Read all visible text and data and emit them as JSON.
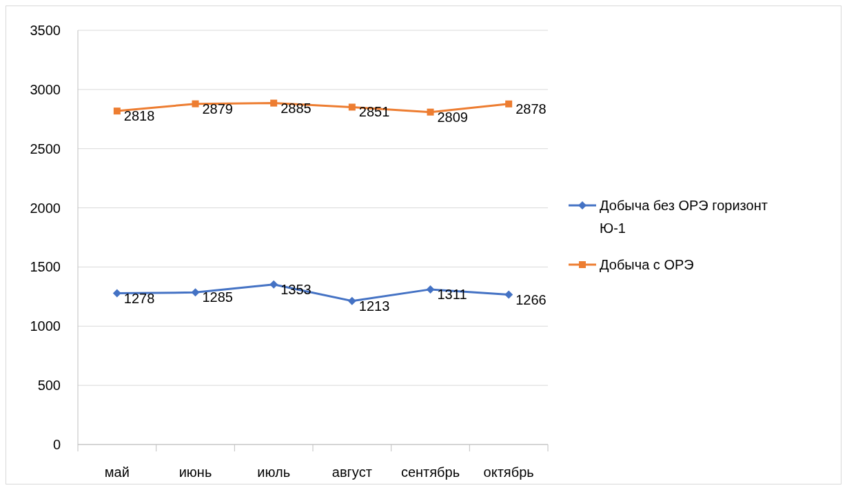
{
  "chart_data": {
    "type": "line",
    "categories": [
      "май",
      "июнь",
      "июль",
      "август",
      "сентябрь",
      "октябрь"
    ],
    "series": [
      {
        "name": "Добыча без ОРЭ горизонт Ю-1",
        "color": "#4472c4",
        "marker": "diamond",
        "values": [
          1278,
          1285,
          1353,
          1213,
          1311,
          1266
        ]
      },
      {
        "name": "Добыча с ОРЭ",
        "color": "#ed7d31",
        "marker": "square",
        "values": [
          2818,
          2879,
          2885,
          2851,
          2809,
          2878
        ]
      }
    ],
    "ylim": [
      0,
      3500
    ],
    "yticks": [
      0,
      500,
      1000,
      1500,
      2000,
      2500,
      3000,
      3500
    ],
    "grid": "y",
    "legend": "right",
    "data_labels": true
  }
}
